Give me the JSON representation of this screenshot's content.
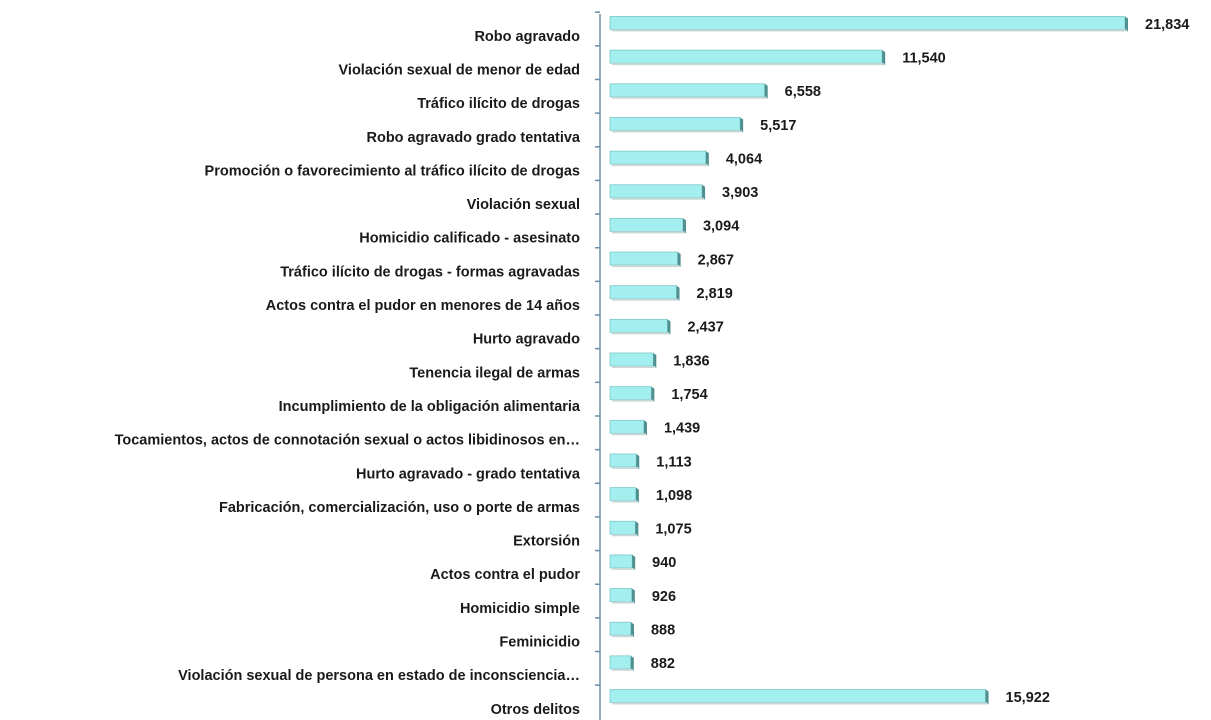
{
  "chart_data": {
    "type": "barh",
    "categories": [
      "Robo agravado",
      "Violación sexual de menor de edad",
      "Tráfico ilícito de drogas",
      "Robo agravado grado tentativa",
      "Promoción o favorecimiento al tráfico ilícito de drogas",
      "Violación sexual",
      "Homicidio calificado - asesinato",
      "Tráfico ilícito de drogas - formas agravadas",
      "Actos contra el pudor en menores de 14 años",
      "Hurto agravado",
      "Tenencia ilegal de armas",
      "Incumplimiento de la obligación alimentaria",
      "Tocamientos, actos de connotación sexual o actos libidinosos en…",
      "Hurto agravado - grado tentativa",
      "Fabricación, comercialización, uso o porte de armas",
      "Extorsión",
      "Actos contra el pudor",
      "Homicidio simple",
      "Feminicidio",
      "Violación sexual de persona en estado de inconsciencia…",
      "Otros delitos"
    ],
    "values": [
      21834,
      11540,
      6558,
      5517,
      4064,
      3903,
      3094,
      2867,
      2819,
      2437,
      1836,
      1754,
      1439,
      1113,
      1098,
      1075,
      940,
      926,
      888,
      882,
      15922
    ],
    "value_labels": [
      "21,834",
      "11,540",
      "6,558",
      "5,517",
      "4,064",
      "3,903",
      "3,094",
      "2,867",
      "2,819",
      "2,437",
      "1,836",
      "1,754",
      "1,439",
      "1,113",
      "1,098",
      "1,075",
      "940",
      "926",
      "888",
      "882",
      "15,922"
    ],
    "color": "#a3eeee"
  }
}
